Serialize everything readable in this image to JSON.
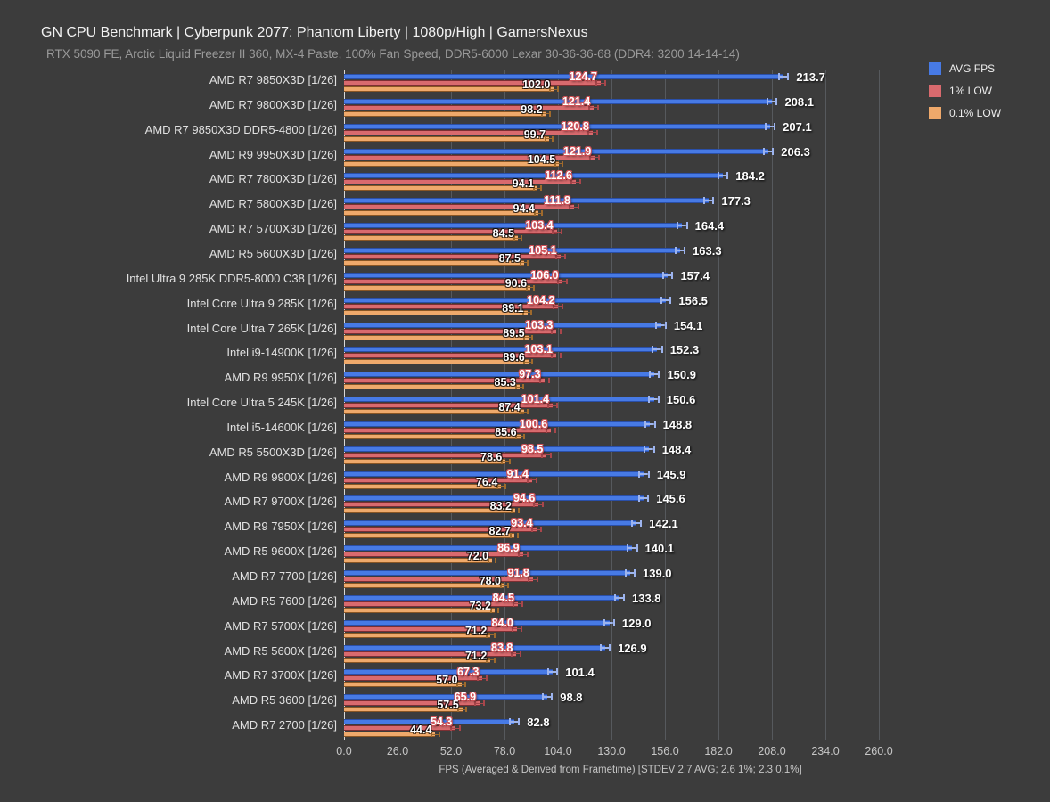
{
  "title": "GN CPU Benchmark | Cyberpunk 2077: Phantom Liberty | 1080p/High | GamersNexus",
  "subtitle": "RTX 5090 FE, Arctic Liquid Freezer II 360, MX-4 Paste, 100% Fan Speed, DDR5-6000 Lexar 30-36-36-68 (DDR4: 3200 14-14-14)",
  "xlabel": "FPS (Averaged & Derived from Frametime) [STDEV 2.7 AVG; 2.6 1%; 2.3 0.1%]",
  "legend": [
    {
      "label": "AVG FPS",
      "color": "#477ae5"
    },
    {
      "label": "1% LOW",
      "color": "#d96a6e"
    },
    {
      "label": "0.1% LOW",
      "color": "#efa96b"
    }
  ],
  "colors": {
    "background": "#3c3c3c",
    "avg_bar": "#477ae5",
    "low1_bar": "#d96a6e",
    "low01_bar": "#efa96b",
    "gridline": "#56595d"
  },
  "chart_data": {
    "type": "bar",
    "orientation": "horizontal",
    "title": "GN CPU Benchmark | Cyberpunk 2077: Phantom Liberty | 1080p/High | GamersNexus",
    "xlabel": "FPS (Averaged & Derived from Frametime) [STDEV 2.7 AVG; 2.6 1%; 2.3 0.1%]",
    "xlim": [
      0,
      260
    ],
    "xticks": [
      0.0,
      26.0,
      52.0,
      78.0,
      104.0,
      130.0,
      156.0,
      182.0,
      208.0,
      234.0,
      260.0
    ],
    "grid": true,
    "legend_position": "top-right",
    "series_names": [
      "AVG FPS",
      "1% LOW",
      "0.1% LOW"
    ],
    "stdev": {
      "avg": 2.7,
      "low1": 2.6,
      "low01": 2.3
    },
    "rows": [
      {
        "label": "AMD R7 9850X3D [1/26]",
        "avg": 213.7,
        "low1": 124.7,
        "low01": 102.0
      },
      {
        "label": "AMD R7 9800X3D [1/26]",
        "avg": 208.1,
        "low1": 121.4,
        "low01": 98.2
      },
      {
        "label": "AMD R7 9850X3D DDR5-4800 [1/26]",
        "avg": 207.1,
        "low1": 120.8,
        "low01": 99.7
      },
      {
        "label": "AMD R9 9950X3D [1/26]",
        "avg": 206.3,
        "low1": 121.9,
        "low01": 104.5
      },
      {
        "label": "AMD R7 7800X3D [1/26]",
        "avg": 184.2,
        "low1": 112.6,
        "low01": 94.1
      },
      {
        "label": "AMD R7 5800X3D [1/26]",
        "avg": 177.3,
        "low1": 111.8,
        "low01": 94.4
      },
      {
        "label": "AMD R7 5700X3D [1/26]",
        "avg": 164.4,
        "low1": 103.4,
        "low01": 84.5
      },
      {
        "label": "AMD R5 5600X3D [1/26]",
        "avg": 163.3,
        "low1": 105.1,
        "low01": 87.5
      },
      {
        "label": "Intel Ultra 9 285K DDR5-8000 C38 [1/26]",
        "avg": 157.4,
        "low1": 106.0,
        "low01": 90.6
      },
      {
        "label": "Intel Core Ultra 9 285K [1/26]",
        "avg": 156.5,
        "low1": 104.2,
        "low01": 89.1
      },
      {
        "label": "Intel Core Ultra 7 265K [1/26]",
        "avg": 154.1,
        "low1": 103.3,
        "low01": 89.5
      },
      {
        "label": "Intel i9-14900K [1/26]",
        "avg": 152.3,
        "low1": 103.1,
        "low01": 89.6
      },
      {
        "label": "AMD R9 9950X [1/26]",
        "avg": 150.9,
        "low1": 97.3,
        "low01": 85.3
      },
      {
        "label": "Intel Core Ultra 5 245K [1/26]",
        "avg": 150.6,
        "low1": 101.4,
        "low01": 87.4
      },
      {
        "label": "Intel i5-14600K [1/26]",
        "avg": 148.8,
        "low1": 100.6,
        "low01": 85.6
      },
      {
        "label": "AMD R5 5500X3D [1/26]",
        "avg": 148.4,
        "low1": 98.5,
        "low01": 78.6
      },
      {
        "label": "AMD R9 9900X [1/26]",
        "avg": 145.9,
        "low1": 91.4,
        "low01": 76.4
      },
      {
        "label": "AMD R7 9700X [1/26]",
        "avg": 145.6,
        "low1": 94.6,
        "low01": 83.2
      },
      {
        "label": "AMD R9 7950X [1/26]",
        "avg": 142.1,
        "low1": 93.4,
        "low01": 82.7
      },
      {
        "label": "AMD R5 9600X [1/26]",
        "avg": 140.1,
        "low1": 86.9,
        "low01": 72.0
      },
      {
        "label": "AMD R7 7700 [1/26]",
        "avg": 139.0,
        "low1": 91.8,
        "low01": 78.0
      },
      {
        "label": "AMD R5 7600 [1/26]",
        "avg": 133.8,
        "low1": 84.5,
        "low01": 73.2
      },
      {
        "label": "AMD R7 5700X [1/26]",
        "avg": 129.0,
        "low1": 84.0,
        "low01": 71.2
      },
      {
        "label": "AMD R5 5600X [1/26]",
        "avg": 126.9,
        "low1": 83.8,
        "low01": 71.2
      },
      {
        "label": "AMD R7 3700X [1/26]",
        "avg": 101.4,
        "low1": 67.3,
        "low01": 57.0
      },
      {
        "label": "AMD R5 3600 [1/26]",
        "avg": 98.8,
        "low1": 65.9,
        "low01": 57.5
      },
      {
        "label": "AMD R7 2700 [1/26]",
        "avg": 82.8,
        "low1": 54.3,
        "low01": 44.4
      }
    ]
  }
}
